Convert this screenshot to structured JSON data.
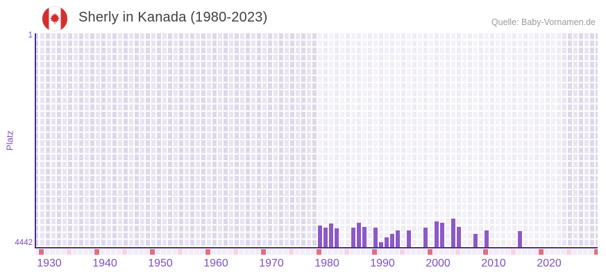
{
  "header": {
    "title": "Sherly in Kanada (1980-2023)",
    "source": "Quelle: Baby-Vornamen.de",
    "flag": "canada"
  },
  "chart_data": {
    "type": "bar",
    "title": "Sherly in Kanada (1980-2023)",
    "xlabel": "",
    "ylabel": "Platz",
    "y_axis": {
      "min": 1,
      "max": 4442,
      "inverted": true,
      "tick_labels": {
        "top": "1",
        "bottom": "4442"
      }
    },
    "x_axis": {
      "start_year": 1929,
      "end_year": 2030,
      "tick_years": [
        1930,
        1940,
        1950,
        1960,
        1970,
        1980,
        1990,
        2000,
        2010,
        2020
      ]
    },
    "highlight_range": {
      "start_year": 1980,
      "end_year": 2023
    },
    "legend": "none",
    "grid": true,
    "series": [
      {
        "name": "Platz",
        "points": [
          {
            "year": 1980,
            "rank": 3995
          },
          {
            "year": 1981,
            "rank": 4040
          },
          {
            "year": 1982,
            "rank": 3955
          },
          {
            "year": 1983,
            "rank": 4055
          },
          {
            "year": 1986,
            "rank": 4040
          },
          {
            "year": 1987,
            "rank": 3935
          },
          {
            "year": 1988,
            "rank": 4025
          },
          {
            "year": 1990,
            "rank": 4040
          },
          {
            "year": 1991,
            "rank": 4340
          },
          {
            "year": 1992,
            "rank": 4240
          },
          {
            "year": 1993,
            "rank": 4170
          },
          {
            "year": 1994,
            "rank": 4095
          },
          {
            "year": 1996,
            "rank": 4095
          },
          {
            "year": 1999,
            "rank": 4040
          },
          {
            "year": 2001,
            "rank": 3910
          },
          {
            "year": 2002,
            "rank": 3935
          },
          {
            "year": 2004,
            "rank": 3850
          },
          {
            "year": 2005,
            "rank": 4025
          },
          {
            "year": 2008,
            "rank": 4170
          },
          {
            "year": 2010,
            "rank": 4095
          },
          {
            "year": 2016,
            "rank": 4110
          }
        ]
      }
    ]
  },
  "colors": {
    "bar": "#8d58c8",
    "axis_line": "#4b2e91",
    "axis_text": "#7b50c3",
    "title_text": "#3f3f3f",
    "source_text": "#9b9b9b",
    "plot_col_even": "#e9e4f1",
    "plot_col_odd": "#ded8ea",
    "strip_default": "#f1ecf8",
    "strip_half_decade": "#f5d4e2",
    "strip_decade": "#e26e7e",
    "flag_red": "#d32f2f"
  }
}
